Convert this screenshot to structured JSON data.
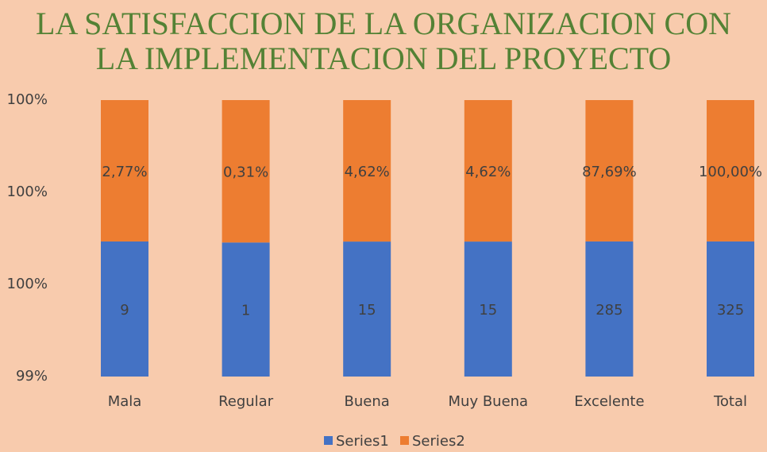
{
  "chart_data": {
    "type": "bar",
    "stacked": "percent",
    "title": [
      "LA SATISFACCION DE LA ORGANIZACION CON",
      "LA IMPLEMENTACION DEL PROYECTO"
    ],
    "categories": [
      "Mala",
      "Regular",
      "Buena",
      "Muy Buena",
      "Excelente",
      "Total"
    ],
    "series": [
      {
        "name": "Series1",
        "color": "#4472c4",
        "values": [
          9,
          1,
          15,
          15,
          285,
          325
        ]
      },
      {
        "name": "Series2",
        "color": "#ed7d31",
        "values": [
          0.0277,
          0.0031,
          0.0462,
          0.0462,
          0.8769,
          1
        ],
        "value_labels": [
          "2,77%",
          "0,31%",
          "4,62%",
          "4,62%",
          "87,69%",
          "100,00%"
        ]
      }
    ],
    "ylim": [
      99.4,
      100
    ],
    "yticks": [
      {
        "value": 99.4,
        "label": "99%"
      },
      {
        "value": 99.6,
        "label": "100%"
      },
      {
        "value": 99.8,
        "label": "100%"
      },
      {
        "value": 100,
        "label": "100%"
      }
    ],
    "grid": false,
    "legend": "bottom"
  }
}
